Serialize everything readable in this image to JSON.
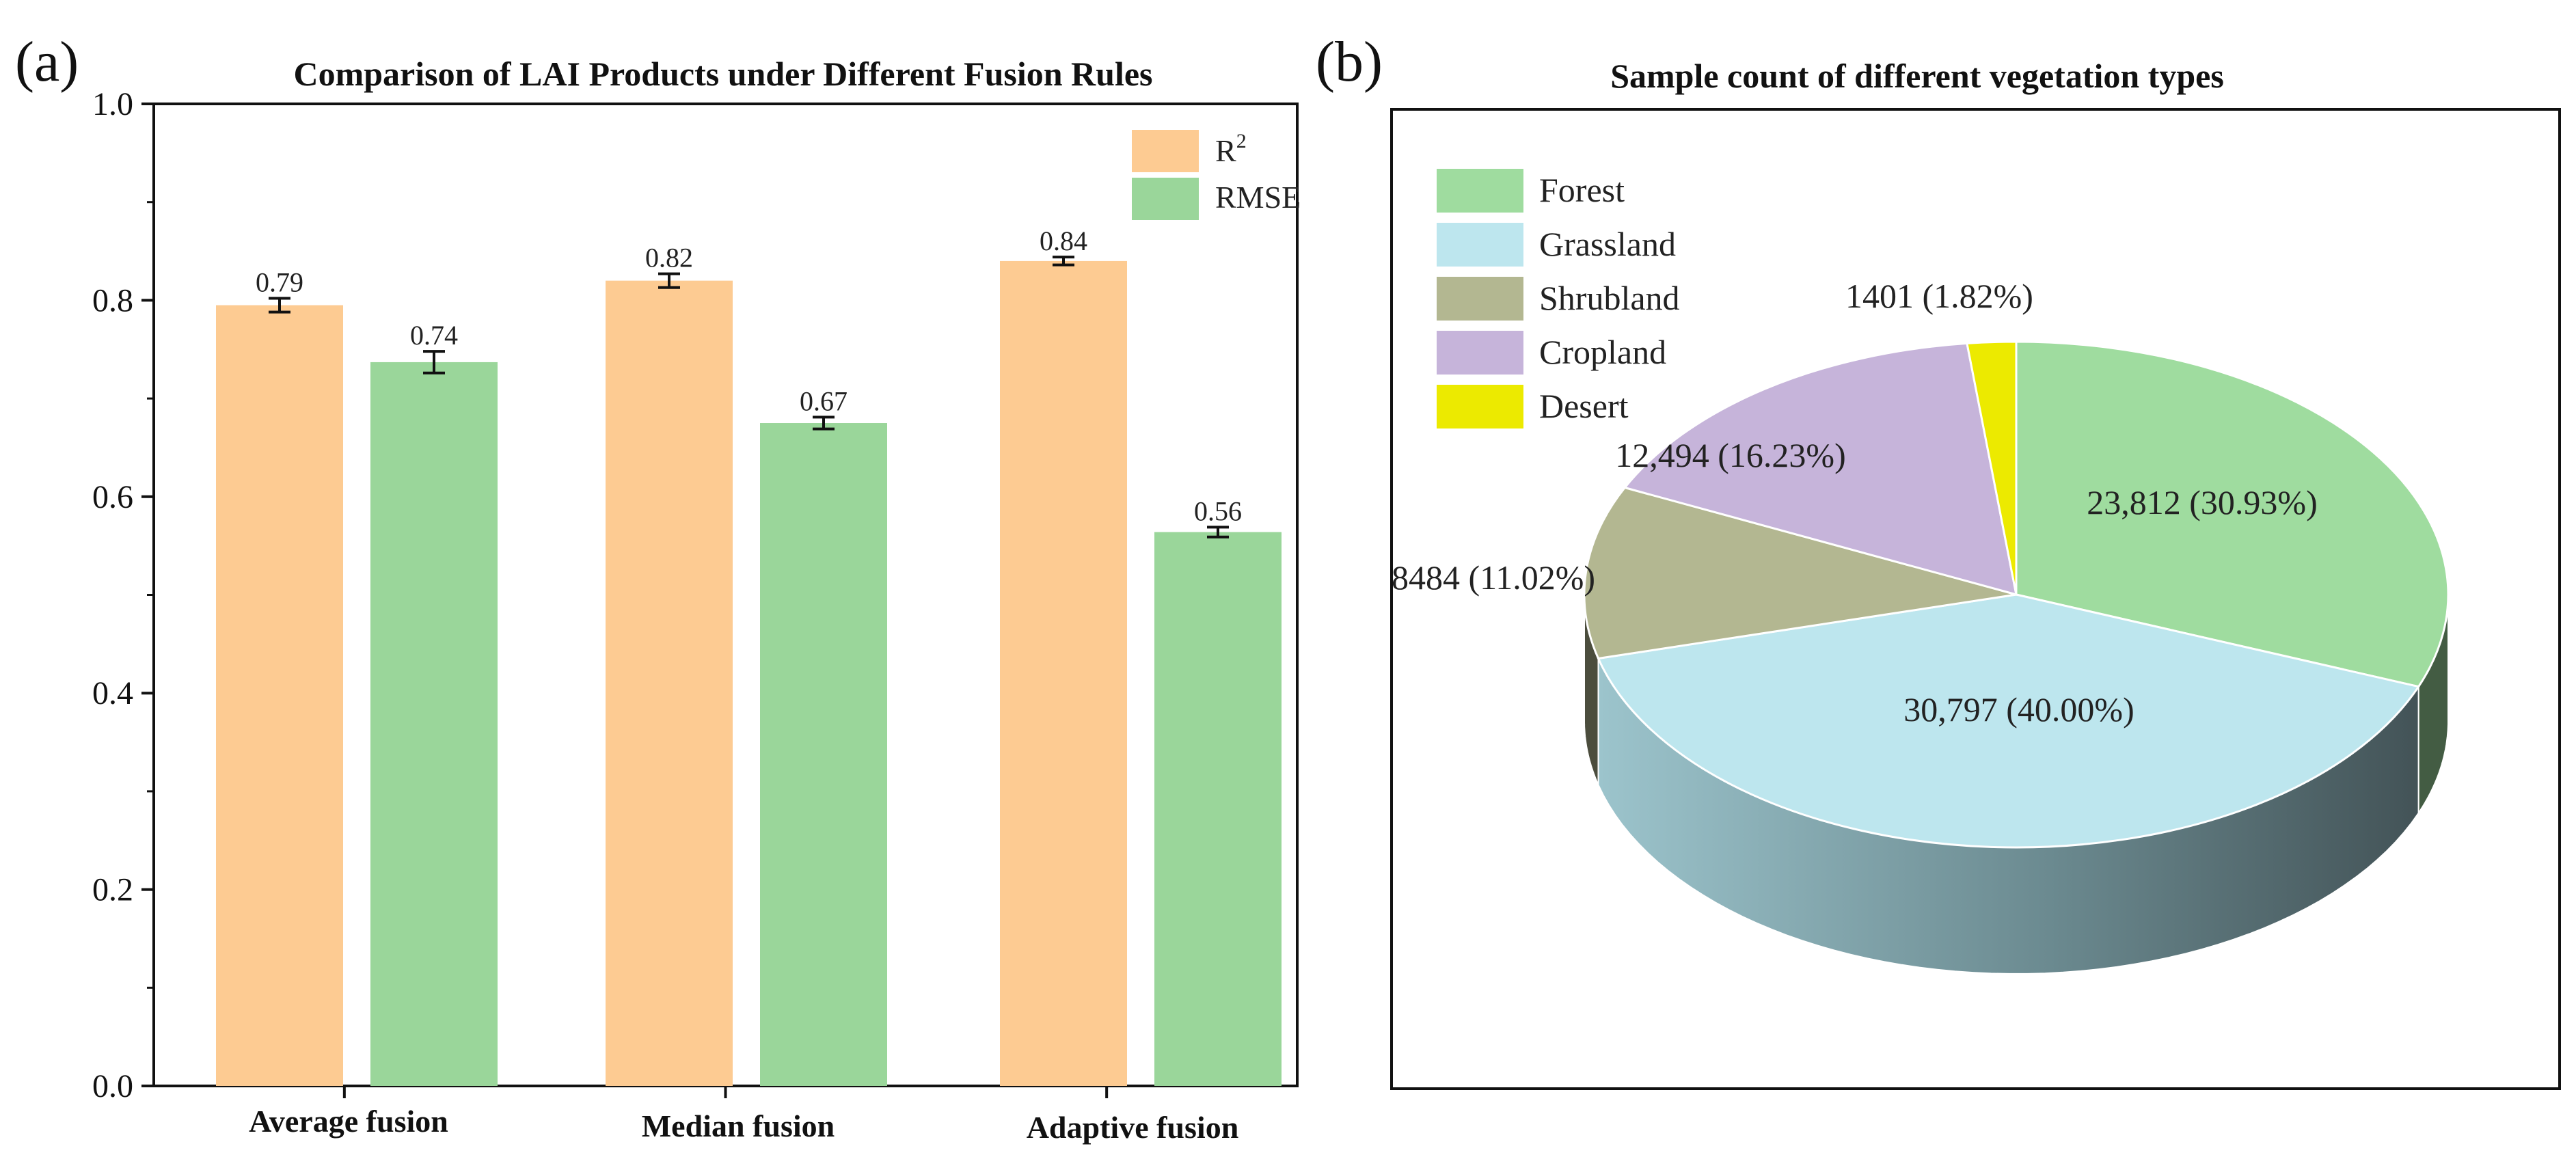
{
  "panel_labels": {
    "a": "(a)",
    "b": "(b)"
  },
  "chart_data": [
    {
      "type": "bar",
      "title": "Comparison of LAI Products under Different Fusion Rules",
      "xlabel": "",
      "ylabel": "",
      "ylim": [
        0,
        1.0
      ],
      "yticks": [
        0.0,
        0.2,
        0.4,
        0.6,
        0.8,
        1.0
      ],
      "ytick_labels": [
        "0.0",
        "0.2",
        "0.4",
        "0.6",
        "0.8",
        "1.0"
      ],
      "categories": [
        "Average fusion",
        "Median fusion",
        "Adaptive fusion"
      ],
      "legend": {
        "position": "top-right",
        "entries": [
          "R",
          "RMSE"
        ],
        "r2_superscript": "2"
      },
      "series": [
        {
          "name": "R²",
          "color": "#FDCB92",
          "values": [
            0.795,
            0.82,
            0.84
          ],
          "errors": [
            0.007,
            0.007,
            0.004
          ],
          "labels": [
            "0.79",
            "0.82",
            "0.84"
          ]
        },
        {
          "name": "RMSE",
          "color": "#9AD69A",
          "values": [
            0.737,
            0.675,
            0.564
          ],
          "errors": [
            0.011,
            0.006,
            0.005
          ],
          "labels": [
            "0.74",
            "0.67",
            "0.56"
          ]
        }
      ]
    },
    {
      "type": "pie",
      "title": "Sample count of different vegetation types",
      "legend": {
        "position": "top-left"
      },
      "slices": [
        {
          "name": "Forest",
          "value": 23812,
          "percent": 30.93,
          "label": "23,812 (30.93%)",
          "color": "#9FDC9F"
        },
        {
          "name": "Grassland",
          "value": 30797,
          "percent": 40.0,
          "label": "30,797 (40.00%)",
          "color": "#BDE6EE"
        },
        {
          "name": "Shrubland",
          "value": 8484,
          "percent": 11.02,
          "label": "8484 (11.02%)",
          "color": "#B3B791"
        },
        {
          "name": "Cropland",
          "value": 12494,
          "percent": 16.23,
          "label": "12,494 (16.23%)",
          "color": "#C6B4DA"
        },
        {
          "name": "Desert",
          "value": 1401,
          "percent": 1.82,
          "label": "1401 (1.82%)",
          "color": "#ECEA00"
        }
      ]
    }
  ]
}
